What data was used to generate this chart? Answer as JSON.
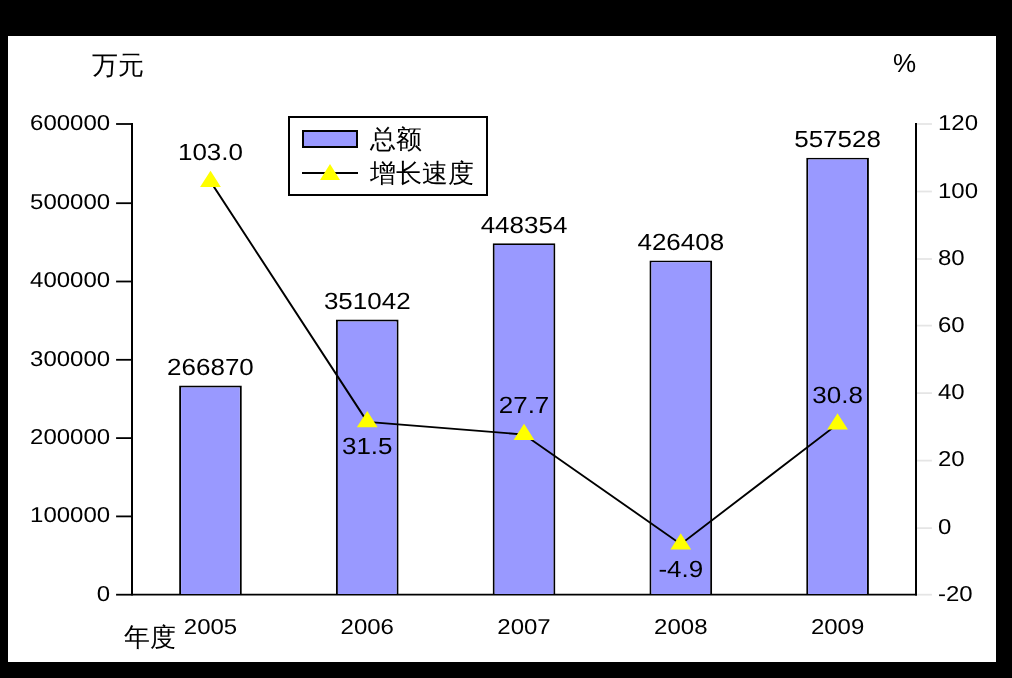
{
  "chart_data": {
    "type": "bar",
    "ylabel": "万元",
    "y2label": "%",
    "xlabel": "年度",
    "categories": [
      "2005",
      "2006",
      "2007",
      "2008",
      "2009"
    ],
    "series": [
      {
        "name": "总额",
        "color": "#9999ff",
        "values": [
          266870,
          351042,
          448354,
          426408,
          557528
        ]
      },
      {
        "name": "增长速度",
        "type": "line",
        "axis": "y2",
        "color": "#ffff00",
        "marker": "triangle",
        "values": [
          103.0,
          31.5,
          27.7,
          -4.9,
          30.8
        ],
        "value_labels": [
          "103.0",
          "31.5",
          "27.7",
          "-4.9",
          "30.8"
        ]
      }
    ],
    "ylim": [
      0,
      600000
    ],
    "yticks": [
      0,
      100000,
      200000,
      300000,
      400000,
      500000,
      600000
    ],
    "y2lim": [
      -20,
      120
    ],
    "y2ticks": [
      -20,
      0,
      20,
      40,
      60,
      80,
      100,
      120
    ],
    "data_labels": true,
    "legend": "top left",
    "grid": false
  }
}
